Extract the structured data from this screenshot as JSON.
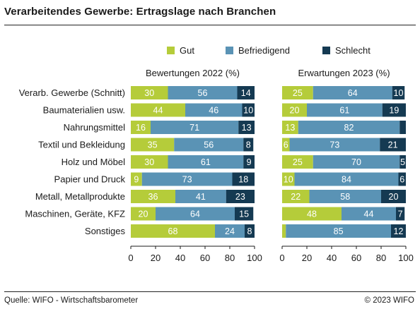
{
  "title": "Verarbeitendes Gewerbe: Ertragslage nach Branchen",
  "footer": {
    "source": "Quelle: WIFO - Wirtschaftsbarometer",
    "copyright": "© 2023 WIFO"
  },
  "legend": [
    {
      "label": "Gut",
      "color": "#b5cc3a"
    },
    {
      "label": "Befriedigend",
      "color": "#5a93b5"
    },
    {
      "label": "Schlecht",
      "color": "#153a52"
    }
  ],
  "chart_data": [
    {
      "type": "bar",
      "orientation": "horizontal",
      "stacked": true,
      "title": "Bewertungen 2022 (%)",
      "categories": [
        "Verarb. Gewerbe (Schnitt)",
        "Baumaterialien usw.",
        "Nahrungsmittel",
        "Textil und Bekleidung",
        "Holz und Möbel",
        "Papier und Druck",
        "Metall, Metallprodukte",
        "Maschinen, Geräte, KFZ",
        "Sonstiges"
      ],
      "series": [
        {
          "name": "Gut",
          "color": "#b5cc3a",
          "values": [
            30,
            44,
            16,
            35,
            30,
            9,
            36,
            20,
            68
          ]
        },
        {
          "name": "Befriedigend",
          "color": "#5a93b5",
          "values": [
            56,
            46,
            71,
            56,
            61,
            73,
            41,
            64,
            24
          ]
        },
        {
          "name": "Schlecht",
          "color": "#153a52",
          "values": [
            14,
            10,
            13,
            8,
            9,
            18,
            23,
            15,
            8
          ]
        }
      ],
      "xlim": [
        0,
        100
      ],
      "xticks": [
        0,
        20,
        40,
        60,
        80,
        100
      ],
      "grid": false,
      "legend_position": "top"
    },
    {
      "type": "bar",
      "orientation": "horizontal",
      "stacked": true,
      "title": "Erwartungen 2023 (%)",
      "categories": [
        "Verarb. Gewerbe (Schnitt)",
        "Baumaterialien usw.",
        "Nahrungsmittel",
        "Textil und Bekleidung",
        "Holz und Möbel",
        "Papier und Druck",
        "Metall, Metallprodukte",
        "Maschinen, Geräte, KFZ",
        "Sonstiges"
      ],
      "series": [
        {
          "name": "Gut",
          "color": "#b5cc3a",
          "values": [
            25,
            20,
            13,
            6,
            25,
            10,
            22,
            48,
            3
          ]
        },
        {
          "name": "Befriedigend",
          "color": "#5a93b5",
          "values": [
            64,
            61,
            82,
            73,
            70,
            84,
            58,
            44,
            85
          ]
        },
        {
          "name": "Schlecht",
          "color": "#153a52",
          "values": [
            10,
            19,
            5,
            21,
            5,
            6,
            20,
            7,
            12
          ]
        }
      ],
      "labels": [
        [
          "25",
          "64",
          "10"
        ],
        [
          "20",
          "61",
          "19"
        ],
        [
          "13",
          "82",
          ""
        ],
        [
          "6",
          "73",
          "21"
        ],
        [
          "25",
          "70",
          "5"
        ],
        [
          "10",
          "84",
          "6"
        ],
        [
          "22",
          "58",
          "20"
        ],
        [
          "48",
          "44",
          "7"
        ],
        [
          "",
          "85",
          "12"
        ]
      ],
      "xlim": [
        0,
        100
      ],
      "xticks": [
        0,
        20,
        40,
        60,
        80,
        100
      ],
      "grid": false,
      "legend_position": "top"
    }
  ]
}
